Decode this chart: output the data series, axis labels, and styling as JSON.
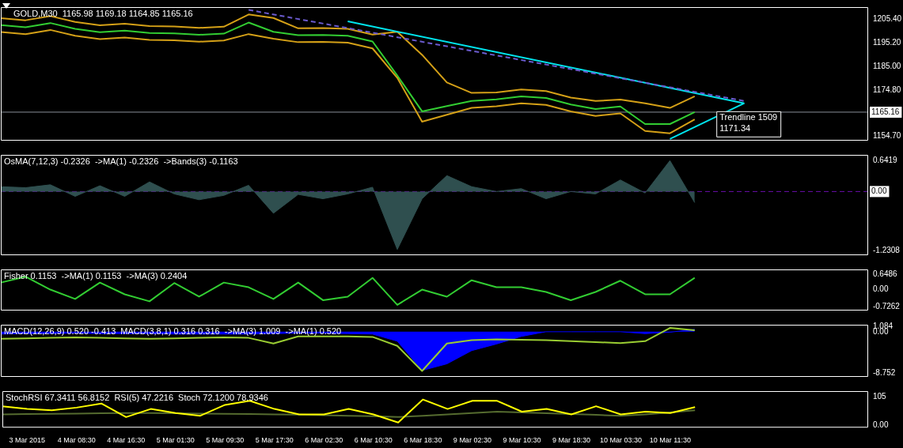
{
  "chart_data": [
    {
      "type": "line",
      "title": "GOLD,M30  1165.98 1169.18 1164.85 1165.16",
      "ylim": [
        1152.8,
        1210.7
      ],
      "yticks": [
        {
          "value": 1154.7,
          "label": "1154.70"
        },
        1165.16,
        {
          "value": 1174.8,
          "label": "1174.80"
        },
        {
          "value": 1185,
          "label": "1185.00"
        },
        {
          "value": 1195.2,
          "label": "1195.20"
        },
        {
          "value": 1205.4,
          "label": "1205.40"
        }
      ],
      "tick_labels": "y",
      "legend": false,
      "grid": false,
      "marker": "none",
      "ref_lines": [
        {
          "axis": "y",
          "value": 1165.16,
          "color": "#8a8f99"
        }
      ],
      "annotations": [
        "Trendline 1509",
        "1171.34"
      ],
      "series": [
        {
          "color": "#32cd32",
          "values": [
            1202.9,
            1202,
            1203.8,
            1201.3,
            1199.8,
            1200.5,
            1199.5,
            1199.3,
            1198.7,
            1199.2,
            1204,
            1200,
            1198.5,
            1198.6,
            1198.3,
            1195.8,
            1181,
            1165.5,
            1167.8,
            1170,
            1170.7,
            1172,
            1171.3,
            1168.5,
            1166.5,
            1167.6,
            1160,
            1160,
            1165.2,
            null,
            null,
            null,
            null,
            null,
            null,
            null
          ]
        },
        {
          "color": "#d4a017",
          "values": [
            1205.9,
            1205,
            1206.8,
            1204.3,
            1202.8,
            1203.5,
            1202.5,
            1202.3,
            1201.7,
            1202.2,
            1207.5,
            1206,
            1201.5,
            1201.6,
            1201.3,
            1198.8,
            1200,
            1190,
            1178,
            1173.5,
            1173.7,
            1175,
            1174.3,
            1171.5,
            1170,
            1170.6,
            1169,
            1167,
            1172,
            null,
            null,
            null,
            null,
            null,
            null,
            null
          ]
        },
        {
          "color": "#d4a017",
          "values": [
            1199.9,
            1199,
            1200.8,
            1198.3,
            1196.8,
            1197.5,
            1196.5,
            1196.3,
            1195.7,
            1196.2,
            1199,
            1197,
            1195.5,
            1195.6,
            1195.3,
            1192.8,
            1180,
            1161,
            1164,
            1167,
            1167.7,
            1169,
            1168.3,
            1165.5,
            1163.5,
            1164.6,
            1157,
            1156,
            1162,
            null,
            null,
            null,
            null,
            null,
            null,
            null
          ]
        },
        {
          "color": "#00e5ee",
          "values": [
            null,
            null,
            null,
            null,
            null,
            null,
            null,
            null,
            null,
            null,
            null,
            null,
            null,
            null,
            1204.5,
            null,
            null,
            null,
            null,
            null,
            null,
            null,
            null,
            null,
            null,
            null,
            null,
            null,
            null,
            null,
            1169,
            null,
            null,
            null,
            null,
            null
          ]
        },
        {
          "color": "#00e5ee",
          "values": [
            null,
            null,
            null,
            null,
            null,
            null,
            null,
            null,
            null,
            null,
            null,
            null,
            null,
            null,
            null,
            null,
            null,
            null,
            null,
            null,
            null,
            null,
            null,
            null,
            null,
            null,
            null,
            1153.5,
            null,
            null,
            1169,
            null,
            null,
            null,
            null,
            null
          ]
        },
        {
          "color": "#6a5acd",
          "line_style": "dashed",
          "values": [
            null,
            null,
            null,
            null,
            null,
            null,
            null,
            null,
            null,
            null,
            1209.5,
            null,
            null,
            null,
            null,
            null,
            null,
            null,
            null,
            null,
            null,
            null,
            null,
            null,
            null,
            null,
            null,
            null,
            null,
            null,
            1170,
            null,
            null,
            null,
            null,
            null
          ]
        }
      ]
    },
    {
      "type": "area",
      "title": "OsMA(7,12,3) -0.2326  ->MA(1) -0.2326  ->Bands(3) -0.1163",
      "ylim": [
        -1.32,
        0.76
      ],
      "yticks": [
        -1.2308,
        {
          "value": 0,
          "label": "0.00"
        },
        0.6419
      ],
      "tick_labels": "y",
      "legend": false,
      "grid": false,
      "marker": "none",
      "ref_lines": [
        {
          "axis": "y",
          "value": 0,
          "color": "#6a0dad",
          "line_style": "dashed"
        }
      ],
      "series": [
        {
          "color": "#2f4f4f",
          "values": [
            0.1,
            0.08,
            0.14,
            -0.1,
            0.12,
            -0.1,
            0.2,
            -0.05,
            -0.17,
            -0.08,
            0.13,
            -0.45,
            -0.06,
            -0.15,
            -0.05,
            0.09,
            -1.2,
            -0.15,
            0.33,
            0.1,
            0,
            0.06,
            -0.15,
            0,
            -0.05,
            0.24,
            -0.03,
            0.64,
            -0.23,
            null,
            null,
            null,
            null,
            null,
            null,
            null
          ]
        }
      ]
    },
    {
      "type": "line",
      "title": "Fisher 0.1153  ->MA(1) 0.1153  ->MA(3) 0.2404",
      "ylim": [
        -0.89,
        0.86
      ],
      "yticks": [
        -0.7262,
        {
          "value": 0,
          "label": "0.00"
        },
        0.6486
      ],
      "tick_labels": "y",
      "legend": false,
      "grid": false,
      "marker": "none",
      "series": [
        {
          "color": "#32cd32",
          "values": [
            0.3,
            0.55,
            0,
            -0.4,
            0.3,
            -0.2,
            -0.5,
            0.28,
            -0.3,
            0.3,
            0.1,
            -0.4,
            0.3,
            -0.45,
            -0.3,
            0.5,
            -0.65,
            0,
            -0.3,
            0.4,
            0.1,
            0.1,
            -0.1,
            -0.45,
            -0.1,
            0.38,
            -0.2,
            -0.2,
            0.5,
            null,
            null,
            null,
            null,
            null,
            null,
            null
          ]
        }
      ]
    },
    {
      "type": "line",
      "title": "MACD(12,26,9) 0.520 -0.413  MACD(3,8,1) 0.316 0.316  ->MA(3) 1.009  ->MA(1) 0.520",
      "ylim": [
        -9.56,
        1.48
      ],
      "yticks": [
        -8.752,
        {
          "value": 0,
          "label": "0.00"
        },
        1.084
      ],
      "tick_labels": "y",
      "legend": false,
      "grid": false,
      "marker": "none",
      "series": [
        {
          "type": "area",
          "color": "#0000ff",
          "values": [
            -0.5,
            -0.4,
            -0.4,
            -0.3,
            -0.4,
            -0.4,
            -0.4,
            -0.5,
            -0.5,
            -0.5,
            -0.5,
            -0.4,
            -0.3,
            -0.3,
            -0.4,
            -0.5,
            -2,
            -8.2,
            -6.8,
            -4,
            -2.6,
            -1,
            0,
            0,
            0,
            0,
            -0.4,
            -0.1,
            0.5,
            null,
            null,
            null,
            null,
            null,
            null,
            null
          ]
        },
        {
          "color": "#9acd32",
          "values": [
            -1.5,
            -1.4,
            -1.3,
            -1.2,
            -1.3,
            -1.4,
            -1.5,
            -1.4,
            -1.3,
            -1.2,
            -1.3,
            -2.5,
            -1,
            -1,
            -1,
            -1.1,
            -3,
            -8.3,
            -2.5,
            -1.8,
            -1.6,
            -1.7,
            -1.8,
            -2,
            -2.2,
            -2.4,
            -2,
            0.8,
            0.3,
            null,
            null,
            null,
            null,
            null,
            null,
            null
          ]
        }
      ]
    },
    {
      "type": "line",
      "title": "StochRSI 67.3411 56.8152  RSI(5) 47.2216  Stoch 72.1200 78.9346",
      "categories": [
        null,
        "3 Mar 2015",
        null,
        "4 Mar 08:30",
        null,
        "4 Mar 16:30",
        null,
        "5 Mar 01:30",
        null,
        "5 Mar 09:30",
        null,
        "5 Mar 17:30",
        null,
        "6 Mar 02:30",
        null,
        "6 Mar 10:30",
        null,
        "6 Mar 18:30",
        null,
        "9 Mar 02:30",
        null,
        "9 Mar 10:30",
        null,
        "9 Mar 18:30",
        null,
        "10 Mar 03:30",
        null,
        "10 Mar 11:30",
        null,
        null,
        null,
        null,
        null,
        null,
        null,
        null
      ],
      "ylim": [
        -9,
        126
      ],
      "yticks": [
        {
          "value": 0,
          "label": "0.00"
        },
        105
      ],
      "legend": false,
      "grid": false,
      "marker": "none",
      "series": [
        {
          "color": "#556b2f",
          "values": [
            40,
            41,
            42,
            43,
            44,
            45,
            45,
            44,
            43,
            42,
            41,
            40,
            39,
            37,
            35,
            33,
            30,
            35,
            40,
            45,
            50,
            47,
            44,
            41,
            38,
            35,
            40,
            47,
            55,
            null,
            null,
            null,
            null,
            null,
            null,
            null
          ]
        },
        {
          "color": "#ffff00",
          "values": [
            70,
            60,
            55,
            65,
            80,
            30,
            60,
            45,
            35,
            75,
            90,
            60,
            40,
            40,
            60,
            40,
            10,
            95,
            60,
            90,
            90,
            50,
            60,
            40,
            70,
            40,
            50,
            45,
            67,
            null,
            null,
            null,
            null,
            null,
            null,
            null
          ]
        }
      ]
    }
  ]
}
